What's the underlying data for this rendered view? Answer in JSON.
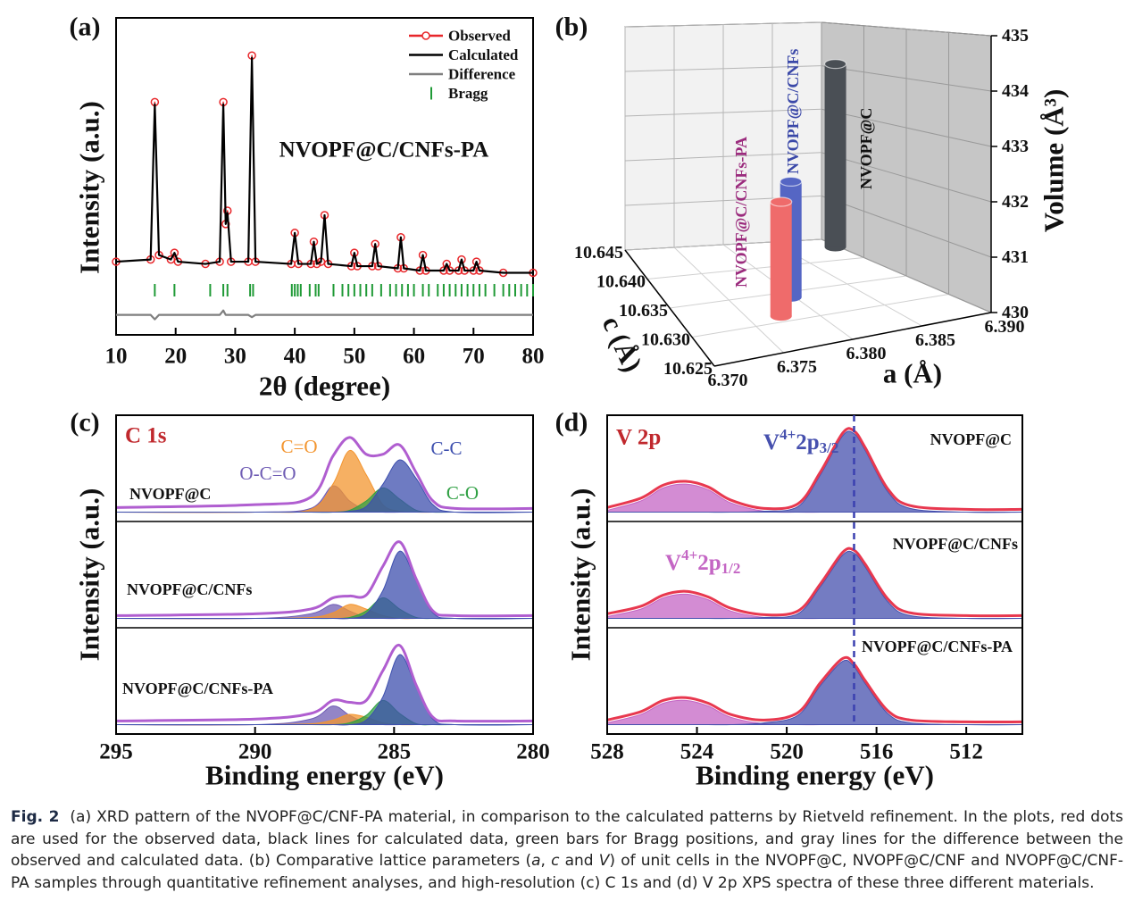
{
  "chart_data": [
    {
      "type": "xrd",
      "panel_label": "(a)",
      "annotation": "NVOPF@C/CNFs-PA",
      "xlabel": "2θ (degree)",
      "ylabel": "Intensity (a.u.)",
      "xlim": [
        10,
        80
      ],
      "xticks": [
        10,
        20,
        30,
        40,
        50,
        60,
        70,
        80
      ],
      "ylim": [
        -28,
        115
      ],
      "x": [
        10,
        15.8,
        16.5,
        17.2,
        19.2,
        19.8,
        20.4,
        25,
        27.4,
        28,
        28.4,
        28.7,
        29.3,
        32.2,
        32.8,
        33.4,
        39.4,
        40,
        40.6,
        42.7,
        43.2,
        43.7,
        44.4,
        45,
        45.6,
        49.5,
        50,
        50.5,
        53,
        53.5,
        54,
        57.3,
        57.8,
        58.3,
        61,
        61.5,
        62,
        65,
        65.5,
        66,
        67.5,
        68,
        68.5,
        70,
        70.5,
        71,
        75,
        80
      ],
      "series": [
        {
          "name": "Observed",
          "color": "#e8262a",
          "marker": "circle",
          "values": [
            5,
            6,
            77,
            8,
            6,
            9,
            5,
            4,
            5,
            77,
            22,
            28,
            5,
            5,
            98,
            5,
            4,
            18,
            4,
            4,
            14,
            4,
            5,
            26,
            4,
            3,
            9,
            3,
            3,
            13,
            3,
            2,
            16,
            2,
            1,
            8,
            1,
            1,
            4,
            1,
            1,
            6,
            1,
            1,
            5,
            1,
            0,
            0
          ]
        },
        {
          "name": "Calculated",
          "color": "#000000",
          "values": [
            5,
            6,
            76,
            8,
            6,
            9,
            5,
            4,
            5,
            76,
            22,
            27,
            5,
            5,
            97,
            5,
            4,
            18,
            4,
            4,
            14,
            4,
            5,
            26,
            4,
            3,
            9,
            3,
            3,
            13,
            3,
            2,
            16,
            2,
            1,
            8,
            1,
            1,
            4,
            1,
            1,
            6,
            1,
            1,
            5,
            1,
            0,
            0
          ]
        },
        {
          "name": "Difference",
          "color": "#7f7f7f",
          "values": [
            -19,
            -19,
            -21,
            -19,
            -19,
            -19,
            -19,
            -19,
            -19,
            -17,
            -19,
            -19,
            -19,
            -19,
            -20,
            -19,
            -19,
            -19,
            -19,
            -19,
            -19,
            -19,
            -19,
            -19,
            -19,
            -19,
            -19,
            -19,
            -19,
            -19,
            -19,
            -19,
            -19,
            -19,
            -19,
            -19,
            -19,
            -19,
            -19,
            -19,
            -19,
            -19,
            -19,
            -19,
            -19,
            -19,
            -19,
            -19
          ]
        }
      ],
      "bragg": {
        "name": "Bragg",
        "color": "#1f9a36",
        "positions": [
          16.5,
          19.8,
          25.8,
          28,
          28.7,
          32.5,
          33,
          39.5,
          40,
          40.5,
          41,
          42.5,
          43.5,
          44,
          46.5,
          48,
          49,
          50,
          51,
          52,
          53,
          54.5,
          56,
          57,
          58,
          59,
          60,
          61.5,
          62.5,
          64,
          65,
          66,
          67,
          68,
          69,
          70,
          71,
          72,
          73.5,
          75,
          76,
          77,
          78,
          79,
          80
        ]
      }
    },
    {
      "type": "bar3d",
      "panel_label": "(b)",
      "xlabel": "a (Å)",
      "ylabel": "c (Å)",
      "zlabel": "Volume (Å³)",
      "xlim": [
        6.37,
        6.39
      ],
      "xticks": [
        {
          "value": 6.37,
          "label": "6.370"
        },
        6.375,
        {
          "value": 6.38,
          "label": "6.380"
        },
        6.385,
        {
          "value": 6.39,
          "label": "6.390"
        }
      ],
      "ylim": [
        10.625,
        10.645
      ],
      "yticks": [
        10.625,
        {
          "value": 10.63,
          "label": "10.630"
        },
        10.635,
        {
          "value": 10.64,
          "label": "10.640"
        },
        10.645
      ],
      "zlim": [
        430,
        435
      ],
      "zticks": [
        430,
        431,
        432,
        433,
        434,
        435
      ],
      "bars": [
        {
          "name": "NVOPF@C",
          "color": "#4a4f55",
          "label_color": "#111111",
          "x": 6.3897,
          "y": 10.643,
          "z": 434.1
        },
        {
          "name": "NVOPF@C/CNFs",
          "color": "#5566c4",
          "label_color": "#3a48a8",
          "x": 6.3797,
          "y": 10.634,
          "z": 432.3
        },
        {
          "name": "NVOPF@C/CNFs-PA",
          "color": "#ef6b6b",
          "label_color": "#9b2b7d",
          "x": 6.3774,
          "y": 10.631,
          "z": 432.2
        }
      ]
    },
    {
      "type": "xps",
      "panel_label": "(c)",
      "title": "C 1s",
      "title_color": "#c0282d",
      "xlabel": "Binding energy (eV)",
      "ylabel": "Intensity (a.u.)",
      "xlim": [
        295,
        280
      ],
      "xticks": [
        295,
        290,
        285,
        280
      ],
      "ylim": [
        -10,
        100
      ],
      "envelope_color": "#b05ed0",
      "x": [
        295,
        290,
        288,
        287.2,
        286.6,
        286,
        285.4,
        284.8,
        284.2,
        283.6,
        282.8,
        280
      ],
      "components": [
        {
          "name": "O-C=O",
          "color": "#6f5cb4"
        },
        {
          "name": "C=O",
          "color": "#f3952f"
        },
        {
          "name": "C-O",
          "color": "#2fa043"
        },
        {
          "name": "C-C",
          "color": "#3d4fae"
        }
      ],
      "samples": [
        {
          "name": "NVOPF@C",
          "envelope": [
            5,
            8,
            16,
            60,
            80,
            62,
            62,
            72,
            42,
            12,
            4,
            4
          ],
          "components": [
            [
              0,
              0,
              4,
              28,
              12,
              2,
              0,
              0,
              0,
              0,
              0,
              0
            ],
            [
              0,
              0,
              3,
              30,
              66,
              40,
              8,
              1,
              0,
              0,
              0,
              0
            ],
            [
              0,
              0,
              0,
              0,
              2,
              12,
              26,
              14,
              2,
              0,
              0,
              0
            ],
            [
              0,
              0,
              0,
              0,
              1,
              6,
              30,
              56,
              36,
              8,
              0,
              0
            ]
          ]
        },
        {
          "name": "NVOPF@C/CNFs",
          "envelope": [
            3,
            5,
            10,
            22,
            24,
            25,
            56,
            82,
            42,
            8,
            3,
            3
          ],
          "components": [
            [
              0,
              0,
              5,
              15,
              8,
              1,
              0,
              0,
              0,
              0,
              0,
              0
            ],
            [
              0,
              0,
              1,
              6,
              15,
              10,
              3,
              0,
              0,
              0,
              0,
              0
            ],
            [
              0,
              0,
              0,
              0,
              1,
              8,
              22,
              10,
              1,
              0,
              0,
              0
            ],
            [
              0,
              0,
              0,
              0,
              0,
              5,
              30,
              72,
              40,
              6,
              0,
              0
            ]
          ]
        },
        {
          "name": "NVOPF@C/CNFs-PA",
          "envelope": [
            4,
            6,
            12,
            26,
            24,
            26,
            58,
            85,
            42,
            8,
            4,
            4
          ],
          "components": [
            [
              0,
              0,
              6,
              20,
              10,
              2,
              0,
              0,
              0,
              0,
              0,
              0
            ],
            [
              0,
              0,
              1,
              5,
              11,
              8,
              2,
              0,
              0,
              0,
              0,
              0
            ],
            [
              0,
              0,
              0,
              0,
              2,
              10,
              26,
              12,
              1,
              0,
              0,
              0
            ],
            [
              0,
              0,
              0,
              0,
              0,
              5,
              30,
              75,
              40,
              6,
              0,
              0
            ]
          ]
        }
      ]
    },
    {
      "type": "xps",
      "panel_label": "(d)",
      "title": "V 2p",
      "title_color": "#c0282d",
      "xlabel": "Binding energy (eV)",
      "ylabel": "Intensity (a.u.)",
      "xlim": [
        528,
        509.5
      ],
      "xticks": [
        528,
        524,
        520,
        516,
        512
      ],
      "ylim": [
        -10,
        100
      ],
      "envelope_color": "#e8384f",
      "reference_line": 517,
      "reference_color": "#3b40b0",
      "x": [
        528,
        526.5,
        525.5,
        524.5,
        523.5,
        522.5,
        521,
        519.5,
        518.5,
        517.5,
        517,
        516.5,
        515.5,
        514.5,
        512,
        509.5
      ],
      "components": [
        {
          "name": {
            "main": "V",
            "sup": "4+",
            "rest": "2p",
            "sub": "1/2"
          },
          "color": "#c466c4"
        },
        {
          "name": {
            "main": "V",
            "sup": "4+",
            "rest": "2p",
            "sub": "3/2"
          },
          "color": "#4650ae"
        }
      ],
      "samples": [
        {
          "name": "NVOPF@C",
          "envelope": [
            5,
            15,
            29,
            33,
            27,
            13,
            4,
            9,
            43,
            85,
            87,
            69,
            25,
            7,
            3,
            3
          ],
          "components": [
            [
              2,
              12,
              26,
              30,
              24,
              10,
              1,
              0,
              0,
              0,
              0,
              0,
              0,
              0,
              0,
              0
            ],
            [
              0,
              0,
              0,
              0,
              0,
              0,
              1,
              6,
              40,
              82,
              84,
              66,
              22,
              4,
              0,
              0
            ]
          ]
        },
        {
          "name": "NVOPF@C/CNFs",
          "envelope": [
            5,
            13,
            25,
            29,
            23,
            11,
            4,
            8,
            37,
            71,
            73,
            58,
            21,
            6,
            3,
            3
          ],
          "components": [
            [
              2,
              10,
              22,
              26,
              20,
              8,
              1,
              0,
              0,
              0,
              0,
              0,
              0,
              0,
              0,
              0
            ],
            [
              0,
              0,
              0,
              0,
              0,
              0,
              1,
              5,
              34,
              68,
              70,
              55,
              18,
              3,
              0,
              0
            ]
          ]
        },
        {
          "name": "NVOPF@C/CNFs-PA",
          "envelope": [
            5,
            14,
            26,
            29,
            23,
            11,
            5,
            13,
            45,
            71,
            65,
            47,
            15,
            5,
            3,
            3
          ],
          "components": [
            [
              2,
              11,
              23,
              26,
              20,
              8,
              1,
              0,
              0,
              0,
              0,
              0,
              0,
              0,
              0,
              0
            ],
            [
              0,
              0,
              0,
              0,
              0,
              0,
              2,
              10,
              42,
              68,
              62,
              44,
              12,
              2,
              0,
              0
            ]
          ]
        }
      ]
    }
  ],
  "caption": {
    "label": "Fig. 2",
    "parts": [
      {
        "text": "(a) XRD pattern of the NVOPF@C/CNF-PA material, in comparison to the calculated patterns by Rietveld refinement. In the plots, red dots are used for the observed data, black lines for calculated data, green bars for Bragg positions, and gray lines for the difference between the observed and calculated data. (b) Comparative lattice parameters ("
      },
      {
        "text": "a",
        "italic": true
      },
      {
        "text": ", "
      },
      {
        "text": "c",
        "italic": true
      },
      {
        "text": " and "
      },
      {
        "text": "V",
        "italic": true
      },
      {
        "text": ") of unit cells in the NVOPF@C, NVOPF@C/CNF and NVOPF@C/CNF-PA samples through quantitative refinement analyses, and high-resolution (c) C 1s and (d) V 2p XPS spectra of these three different materials."
      }
    ]
  }
}
